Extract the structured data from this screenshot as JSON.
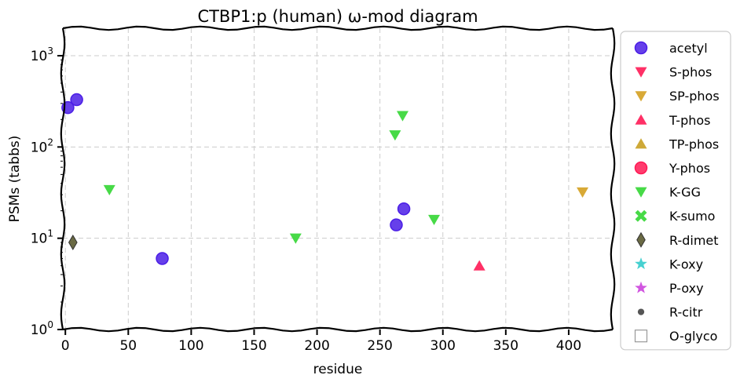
{
  "chart_data": {
    "type": "scatter",
    "title": "CTBP1:p (human) ω-mod diagram",
    "xlabel": "residue",
    "ylabel": "PSMs (tabbs)",
    "xlim": [
      -2,
      435
    ],
    "ylim": [
      1,
      2000
    ],
    "yscale": "log",
    "grid": true,
    "legend_position": "right",
    "x_ticks": [
      "0",
      "50",
      "100",
      "150",
      "200",
      "250",
      "300",
      "350",
      "400"
    ],
    "x_tick_values": [
      0,
      50,
      100,
      150,
      200,
      250,
      300,
      350,
      400
    ],
    "y_ticks": [
      {
        "value": 1,
        "base": "10",
        "exp": "0"
      },
      {
        "value": 10,
        "base": "10",
        "exp": "1"
      },
      {
        "value": 100,
        "base": "10",
        "exp": "2"
      },
      {
        "value": 1000,
        "base": "10",
        "exp": "3"
      }
    ],
    "series": [
      {
        "name": "acetyl",
        "marker": "circle",
        "color": "#4b1ee6",
        "points": [
          [
            2,
            270
          ],
          [
            9,
            330
          ],
          [
            77,
            6
          ],
          [
            263,
            14
          ],
          [
            269,
            21
          ]
        ]
      },
      {
        "name": "S-phos",
        "marker": "triangle-down",
        "color": "#ff1a55",
        "points": []
      },
      {
        "name": "SP-phos",
        "marker": "triangle-down",
        "color": "#d4a020",
        "points": [
          [
            411,
            32
          ]
        ]
      },
      {
        "name": "T-phos",
        "marker": "triangle-up",
        "color": "#ff1a55",
        "points": [
          [
            329,
            5
          ]
        ]
      },
      {
        "name": "TP-phos",
        "marker": "triangle-up",
        "color": "#c9a022",
        "points": []
      },
      {
        "name": "Y-phos",
        "marker": "circle",
        "color": "#ff1a55",
        "points": []
      },
      {
        "name": "K-GG",
        "marker": "triangle-down",
        "color": "#33d633",
        "points": [
          [
            35,
            34
          ],
          [
            183,
            10
          ],
          [
            262,
            135
          ],
          [
            268,
            220
          ],
          [
            293,
            16
          ]
        ]
      },
      {
        "name": "K-sumo",
        "marker": "x",
        "color": "#33d633",
        "points": []
      },
      {
        "name": "R-dimet",
        "marker": "diamond",
        "color": "#5a5a30",
        "points": [
          [
            6,
            9
          ]
        ]
      },
      {
        "name": "K-oxy",
        "marker": "star",
        "color": "#33cccc",
        "points": []
      },
      {
        "name": "P-oxy",
        "marker": "star",
        "color": "#cc44dd",
        "points": []
      },
      {
        "name": "R-citr",
        "marker": "dot",
        "color": "#555555",
        "points": []
      },
      {
        "name": "O-glyco",
        "marker": "square-open",
        "color": "#999999",
        "points": []
      }
    ]
  }
}
